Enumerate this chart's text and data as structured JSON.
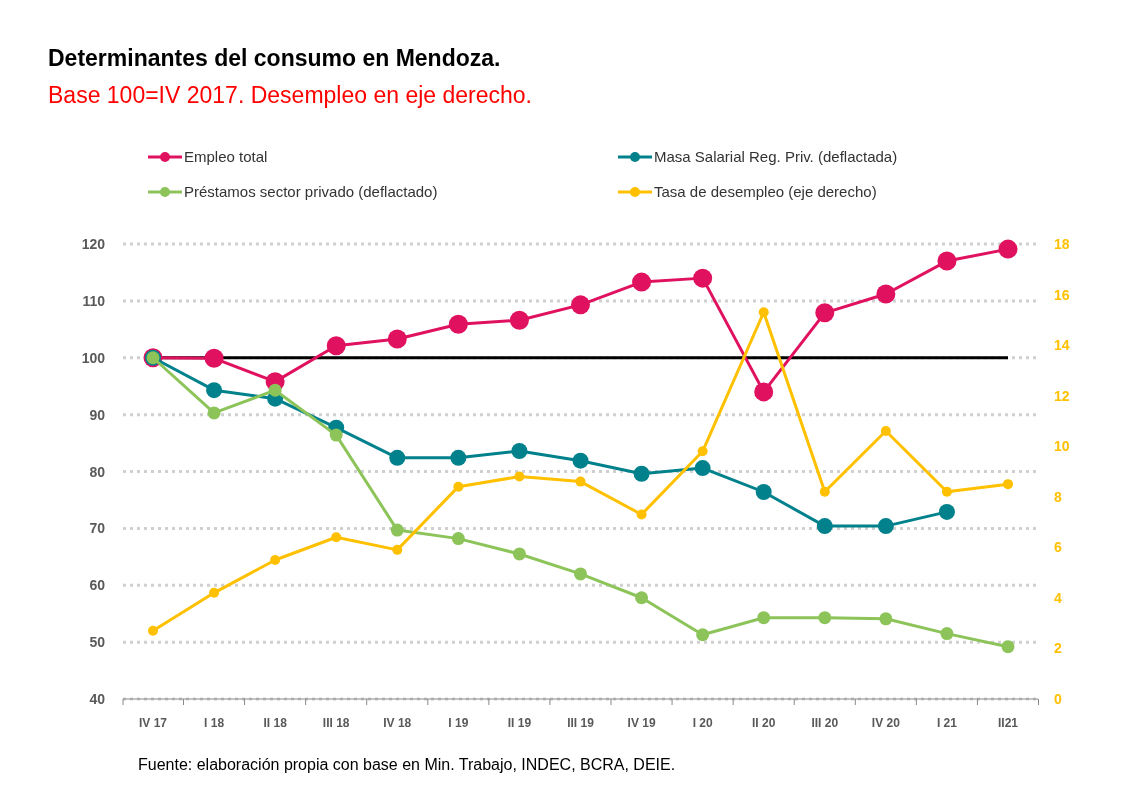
{
  "chart_data": {
    "type": "line",
    "title": "Determinantes del consumo en Mendoza.",
    "subtitle": "Base 100=IV 2017. Desempleo en eje derecho.",
    "categories": [
      "IV 17",
      "I 18",
      "II 18",
      "III 18",
      "IV 18",
      "I 19",
      "II 19",
      "III 19",
      "IV 19",
      "I 20",
      "II 20",
      "III 20",
      "IV 20",
      "I 21",
      "II21"
    ],
    "series": [
      {
        "name": "Empleo total",
        "color": "#e0115f",
        "values": [
          100,
          99.9,
          95.8,
          102.1,
          103.3,
          105.9,
          106.6,
          109.3,
          113.3,
          114,
          94,
          107.9,
          111.2,
          117,
          119.1
        ]
      },
      {
        "name": "Masa Salarial Reg. Priv. (deflactada)",
        "color": "#00818c",
        "values": [
          100,
          94.3,
          92.8,
          87.7,
          82.4,
          82.4,
          83.6,
          81.9,
          79.6,
          80.6,
          76.4,
          70.4,
          70.4,
          72.9,
          null
        ]
      },
      {
        "name": "Préstamos sector privado (deflactado)",
        "color": "#8dc45a",
        "values": [
          100,
          90.3,
          94.3,
          86.4,
          69.7,
          68.2,
          65.5,
          62,
          57.8,
          51.3,
          54.3,
          54.3,
          54.1,
          51.5,
          49.2
        ]
      },
      {
        "name": "Tasa de desempleo (eje derecho)",
        "color": "#ffc000",
        "axis": "y2",
        "values": [
          2.7,
          4.2,
          5.5,
          6.4,
          5.9,
          8.4,
          8.8,
          8.6,
          7.3,
          9.8,
          15.3,
          8.2,
          10.6,
          8.2,
          8.5
        ]
      }
    ],
    "ylim": [
      40,
      120
    ],
    "yticks": [
      40,
      50,
      60,
      70,
      80,
      90,
      100,
      110,
      120
    ],
    "y2lim": [
      0,
      18
    ],
    "y2ticks": [
      0,
      2,
      4,
      6,
      8,
      10,
      12,
      14,
      16,
      18
    ],
    "ref_lines": [
      {
        "axis": "y",
        "value": 100,
        "color": "#000000"
      }
    ],
    "grid": "y",
    "legend": "top",
    "marker": "circle",
    "line_style": "solid",
    "annotations": [
      "Fuente: elaboración propia con base en Min. Trabajo, INDEC, BCRA, DEIE."
    ]
  }
}
